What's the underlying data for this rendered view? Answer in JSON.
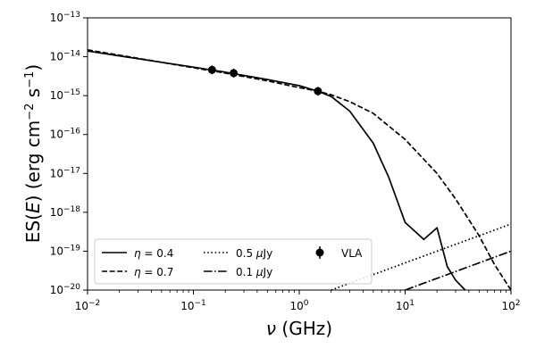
{
  "chart_data": {
    "type": "line",
    "xlabel_main": "ν",
    "xlabel_unit": " (GHz)",
    "ylabel_main": "ES(",
    "ylabel_var": "E",
    "ylabel_rest": ") (erg cm",
    "ylabel_exp1": "−2",
    "ylabel_mid": " s",
    "ylabel_exp2": "−1",
    "ylabel_end": ")",
    "xscale": "log",
    "yscale": "log",
    "xlim": [
      0.01,
      100
    ],
    "ylim": [
      1e-20,
      1e-13
    ],
    "x_ticks": [
      {
        "base": "10",
        "exp": "−2",
        "value": 0.01
      },
      {
        "base": "10",
        "exp": "−1",
        "value": 0.1
      },
      {
        "base": "10",
        "exp": "0",
        "value": 1
      },
      {
        "base": "10",
        "exp": "1",
        "value": 10
      },
      {
        "base": "10",
        "exp": "2",
        "value": 100
      }
    ],
    "y_ticks": [
      {
        "base": "10",
        "exp": "−13",
        "value": 1e-13
      },
      {
        "base": "10",
        "exp": "−14",
        "value": 1e-14
      },
      {
        "base": "10",
        "exp": "−15",
        "value": 1e-15
      },
      {
        "base": "10",
        "exp": "−16",
        "value": 1e-16
      },
      {
        "base": "10",
        "exp": "−17",
        "value": 1e-17
      },
      {
        "base": "10",
        "exp": "−18",
        "value": 1e-18
      },
      {
        "base": "10",
        "exp": "−19",
        "value": 1e-19
      },
      {
        "base": "10",
        "exp": "−20",
        "value": 1e-20
      }
    ],
    "series": [
      {
        "name": "η = 0.4",
        "label_sym": "η",
        "label_rest": " = 0.4",
        "style": "solid",
        "x": [
          0.01,
          0.02,
          0.05,
          0.1,
          0.2,
          0.5,
          1,
          1.5,
          2,
          3,
          5,
          7,
          10,
          15,
          20,
          25,
          30,
          40
        ],
        "y": [
          1.4e-14,
          1.05e-14,
          7.2e-15,
          5.4e-15,
          4e-15,
          2.6e-15,
          1.8e-15,
          1.3e-15,
          9.5e-16,
          4e-16,
          6e-17,
          8e-18,
          5.5e-19,
          2e-19,
          4e-19,
          4e-20,
          1.8e-20,
          8e-21
        ]
      },
      {
        "name": "η = 0.7",
        "label_sym": "η",
        "label_rest": " = 0.7",
        "style": "dashed",
        "x": [
          0.01,
          0.02,
          0.05,
          0.1,
          0.2,
          0.5,
          1,
          1.5,
          2,
          3,
          5,
          10,
          20,
          30,
          50,
          70,
          100
        ],
        "y": [
          1.5e-14,
          1.1e-14,
          7.2e-15,
          5.2e-15,
          3.8e-15,
          2.4e-15,
          1.6e-15,
          1.3e-15,
          1.05e-15,
          7e-16,
          3.5e-16,
          7.5e-17,
          1e-17,
          2.2e-18,
          2.5e-19,
          4.5e-20,
          1e-20
        ]
      },
      {
        "name": "0.5 μJy",
        "label_num": "0.5 ",
        "label_sym": "μ",
        "label_unit": "Jy",
        "style": "dotted",
        "x": [
          2,
          100
        ],
        "y": [
          1e-20,
          5e-19
        ]
      },
      {
        "name": "0.1 μJy",
        "label_num": "0.1 ",
        "label_sym": "μ",
        "label_unit": "Jy",
        "style": "dashdot",
        "x": [
          10,
          100
        ],
        "y": [
          1e-20,
          1e-19
        ]
      }
    ],
    "points": {
      "name": "VLA",
      "x": [
        0.15,
        0.24,
        1.5
      ],
      "y": [
        4.6e-15,
        3.8e-15,
        1.3e-15
      ]
    },
    "legend": "lower-left"
  }
}
